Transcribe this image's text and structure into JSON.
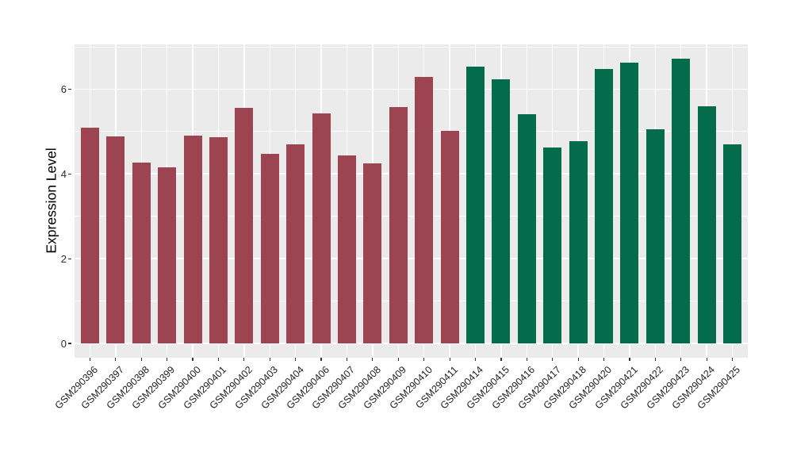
{
  "chart_data": {
    "type": "bar",
    "title": "",
    "ylabel": "Expression Level",
    "xlabel": "",
    "categories": [
      "GSM290396",
      "GSM290397",
      "GSM290398",
      "GSM290399",
      "GSM290400",
      "GSM290401",
      "GSM290402",
      "GSM290403",
      "GSM290404",
      "GSM290406",
      "GSM290407",
      "GSM290408",
      "GSM290409",
      "GSM290410",
      "GSM290411",
      "GSM290414",
      "GSM290415",
      "GSM290416",
      "GSM290417",
      "GSM290418",
      "GSM290420",
      "GSM290421",
      "GSM290422",
      "GSM290423",
      "GSM290424",
      "GSM290425"
    ],
    "values": [
      5.1,
      4.89,
      4.27,
      4.15,
      4.9,
      4.86,
      5.56,
      4.47,
      4.7,
      5.42,
      4.43,
      4.25,
      5.57,
      6.29,
      5.01,
      6.54,
      6.24,
      5.41,
      4.62,
      4.77,
      6.48,
      6.62,
      5.06,
      6.72,
      5.6,
      4.7
    ],
    "group_of_bar": [
      0,
      0,
      0,
      0,
      0,
      0,
      0,
      0,
      0,
      0,
      0,
      0,
      0,
      0,
      0,
      1,
      1,
      1,
      1,
      1,
      1,
      1,
      1,
      1,
      1,
      1
    ],
    "group_colors": [
      "#9C4451",
      "#046C4B"
    ],
    "yticks": [
      "0",
      "2",
      "4",
      "6"
    ],
    "ytick_values": [
      0,
      2,
      4,
      6
    ],
    "minor_ytick_values": [
      1,
      3,
      5,
      7
    ],
    "ylim": [
      0,
      7.05
    ],
    "legend_position": "none",
    "grid": true,
    "panel_bg": "#EBEBEB",
    "grid_color": "#FFFFFF",
    "axis_text_color": "#1f1f1f"
  }
}
